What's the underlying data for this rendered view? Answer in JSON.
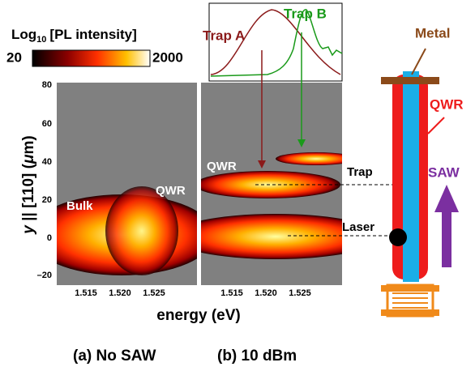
{
  "colorbar": {
    "title_main": "Log",
    "title_subscript": "10",
    "title_rest": "[PL intensity]",
    "min_label": "20",
    "max_label": "2000"
  },
  "axes": {
    "y_label": {
      "italic": "y",
      "text": " || [110] (",
      "unit_italic": "μ",
      "unit": "m)"
    },
    "y_ticks": [
      "80",
      "60",
      "40",
      "20",
      "0",
      "–20"
    ],
    "x_ticks_a": [
      "1.515",
      "1.520",
      "1.525"
    ],
    "x_ticks_b": [
      "1.515",
      "1.520",
      "1.525"
    ],
    "x_label": "energy (eV)"
  },
  "panels": [
    {
      "caption": "(a) No SAW",
      "labels": [
        "Bulk",
        "QWR"
      ]
    },
    {
      "caption": "(b) 10 dBm",
      "labels": [
        "QWR",
        "Trap",
        "Laser"
      ]
    }
  ],
  "inset": {
    "labels": [
      "Trap A",
      "Trap B"
    ]
  },
  "schematic": {
    "labels": [
      "Metal",
      "QWR",
      "SAW"
    ]
  }
}
